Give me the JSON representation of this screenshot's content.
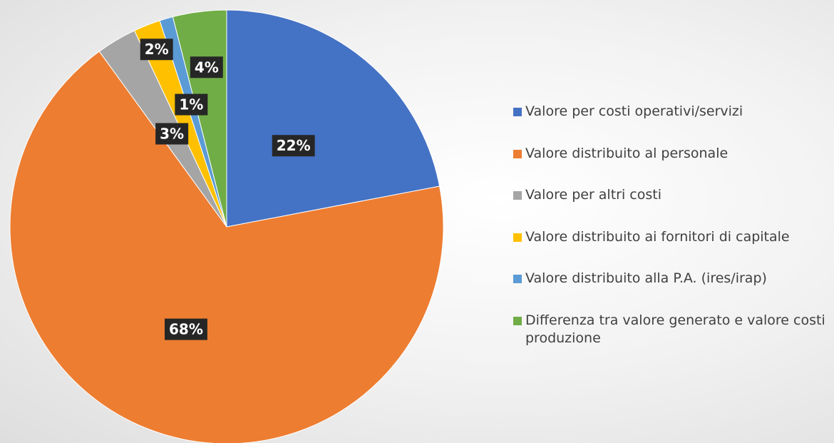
{
  "chart_data": {
    "type": "pie",
    "categories": [
      "Valore per costi operativi/servizi",
      "Valore distribuito al personale",
      "Valore per altri costi",
      "Valore distribuito ai fornitori di capitale",
      "Valore distribuito alla P.A. (ires/irap)",
      "Differenza tra valore generato e valore costi produzione"
    ],
    "values": [
      22,
      68,
      3,
      2,
      1,
      4
    ],
    "value_labels": [
      "22%",
      "68%",
      "3%",
      "2%",
      "1%",
      "4%"
    ],
    "colors": [
      "#4472c4",
      "#ed7d31",
      "#a5a5a5",
      "#ffc000",
      "#5b9bd5",
      "#70ad47"
    ],
    "legend": "right"
  }
}
